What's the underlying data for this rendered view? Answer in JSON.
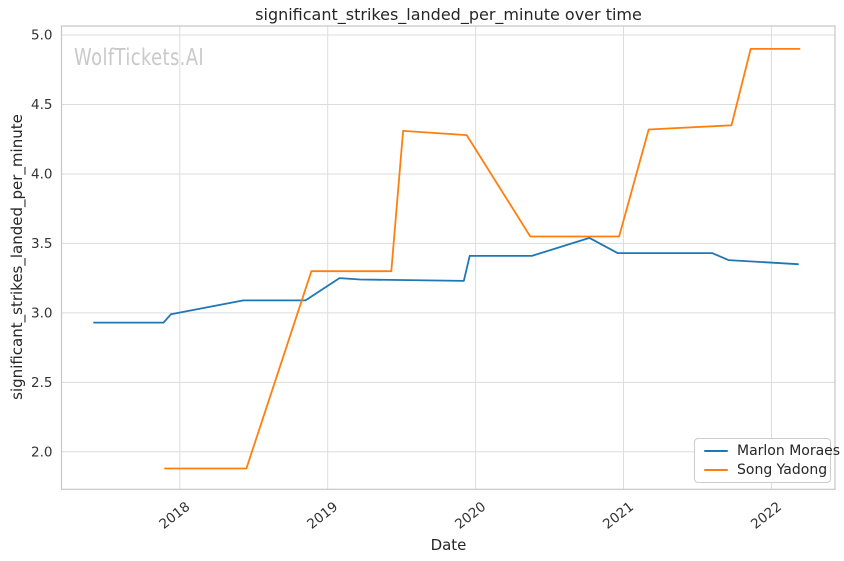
{
  "watermark": {
    "text": "WolfTickets.AI"
  },
  "chart_data": {
    "type": "line",
    "title": "significant_strikes_landed_per_minute over time",
    "xlabel": "Date",
    "ylabel": "significant_strikes_landed_per_minute",
    "xlim": [
      2017.2,
      2022.43
    ],
    "ylim": [
      1.73,
      5.065
    ],
    "xticks": [
      2018,
      2019,
      2020,
      2021,
      2022
    ],
    "yticks": [
      2.0,
      2.5,
      3.0,
      3.5,
      4.0,
      4.5,
      5.0
    ],
    "grid": true,
    "legend_position": "lower right",
    "colors": {
      "grid": "#dcdcdc",
      "spine": "#c6c6c6",
      "tick_text": "#333333",
      "title_text": "#262626",
      "watermark": "#c9c9c9",
      "background": "#ffffff"
    },
    "series": [
      {
        "name": "Marlon Moraes",
        "color": "#1f77b4",
        "points": [
          [
            2017.42,
            2.93
          ],
          [
            2017.89,
            2.93
          ],
          [
            2017.94,
            2.99
          ],
          [
            2018.43,
            3.09
          ],
          [
            2018.85,
            3.09
          ],
          [
            2019.08,
            3.25
          ],
          [
            2019.22,
            3.24
          ],
          [
            2019.92,
            3.23
          ],
          [
            2019.96,
            3.41
          ],
          [
            2020.38,
            3.41
          ],
          [
            2020.77,
            3.54
          ],
          [
            2020.96,
            3.43
          ],
          [
            2021.6,
            3.43
          ],
          [
            2021.71,
            3.38
          ],
          [
            2022.18,
            3.35
          ]
        ]
      },
      {
        "name": "Song Yadong",
        "color": "#ff7f0e",
        "points": [
          [
            2017.9,
            1.88
          ],
          [
            2018.45,
            1.88
          ],
          [
            2018.89,
            3.3
          ],
          [
            2019.43,
            3.3
          ],
          [
            2019.51,
            4.31
          ],
          [
            2019.94,
            4.28
          ],
          [
            2020.37,
            3.55
          ],
          [
            2020.97,
            3.55
          ],
          [
            2021.17,
            4.32
          ],
          [
            2021.73,
            4.35
          ],
          [
            2021.86,
            4.9
          ],
          [
            2022.19,
            4.9
          ]
        ]
      }
    ]
  }
}
